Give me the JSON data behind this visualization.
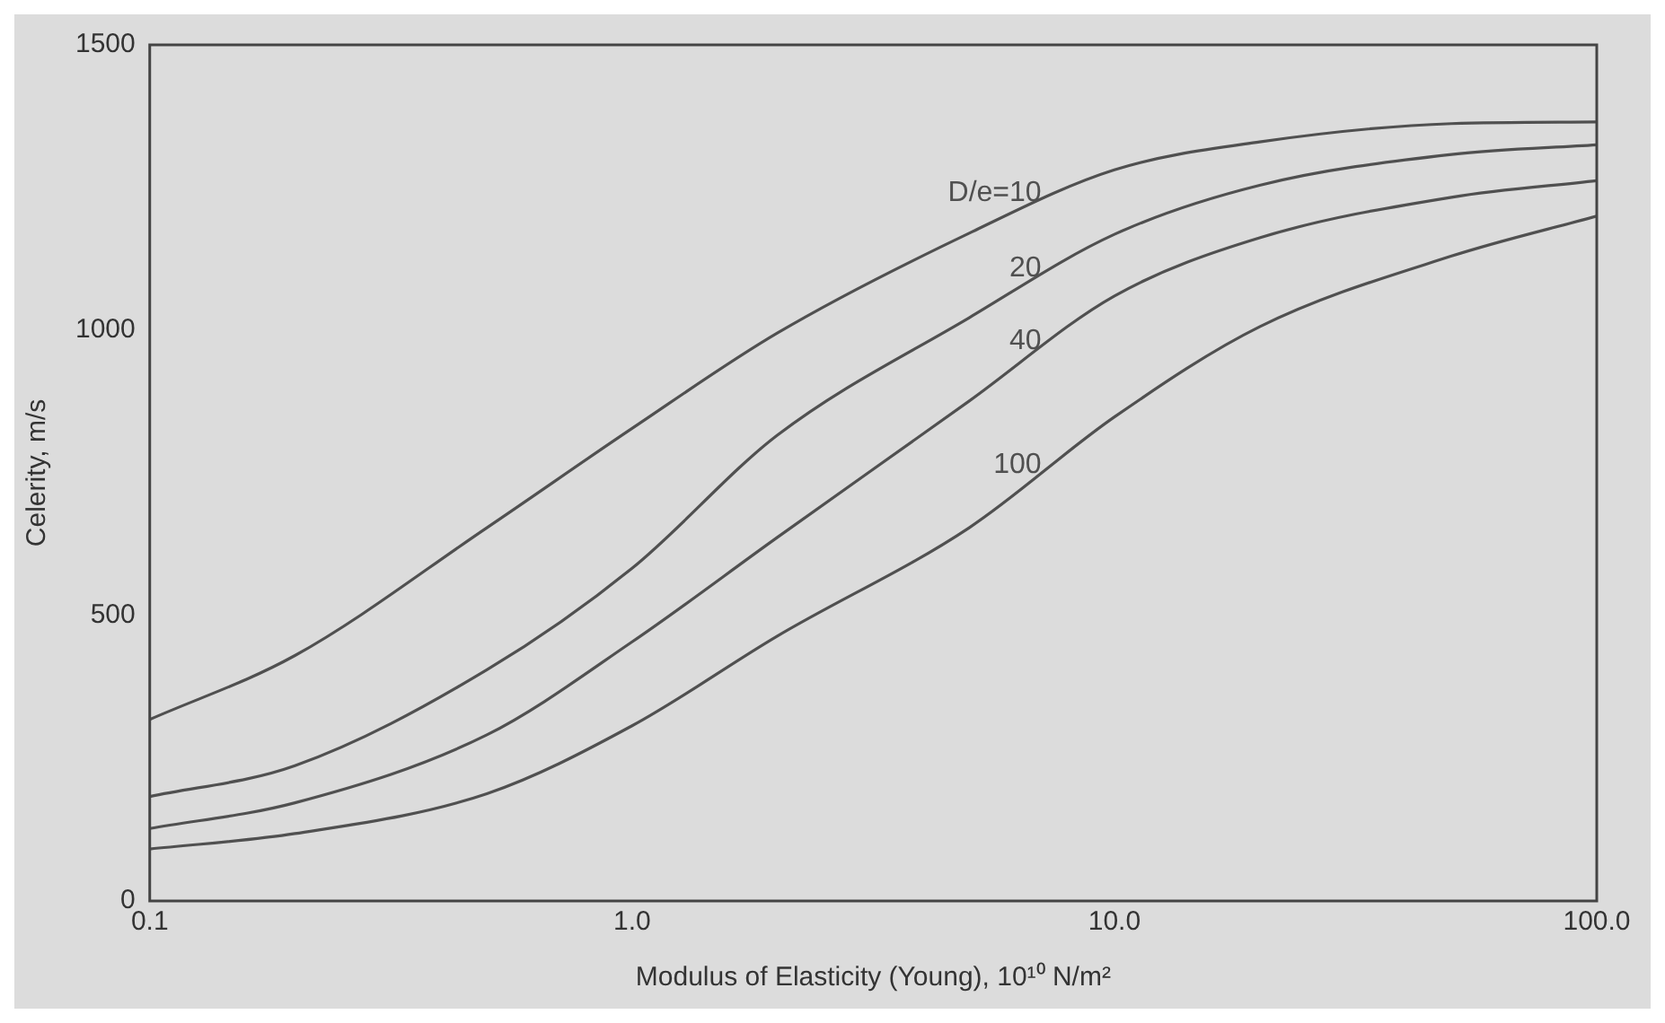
{
  "chart_data": {
    "type": "line",
    "xlabel": "Modulus of Elasticity (Young), 10¹⁰ N/m²",
    "ylabel": "Celerity, m/s",
    "log": "x",
    "xlim": [
      0.1,
      100
    ],
    "xticks": [
      {
        "value": 0.1,
        "label": "0.1"
      },
      {
        "value": 1,
        "label": "1.0"
      },
      {
        "value": 10,
        "label": "10.0"
      },
      {
        "value": 100,
        "label": "100.0"
      }
    ],
    "ylim": [
      0,
      1500
    ],
    "yticks": [
      0,
      500,
      1000,
      1500
    ],
    "grid": false,
    "legend": false,
    "marker": "none",
    "line_style": "solid",
    "x": [
      0.1,
      0.2,
      0.5,
      1,
      2,
      5,
      10,
      20,
      50,
      100
    ],
    "series": [
      {
        "name": "D/e=10",
        "color": "#505050",
        "values": [
          318,
          430,
          654,
          828,
          995,
          1170,
          1281,
          1330,
          1362,
          1365
        ]
      },
      {
        "name": "20",
        "color": "#505050",
        "values": [
          183,
          237,
          405,
          583,
          816,
          1022,
          1168,
          1254,
          1308,
          1325
        ]
      },
      {
        "name": "40",
        "color": "#505050",
        "values": [
          127,
          172,
          291,
          454,
          637,
          876,
          1060,
          1162,
          1233,
          1262
        ]
      },
      {
        "name": "100",
        "color": "#505050",
        "values": [
          91,
          118,
          188,
          307,
          464,
          654,
          848,
          1006,
          1130,
          1200
        ]
      }
    ]
  }
}
